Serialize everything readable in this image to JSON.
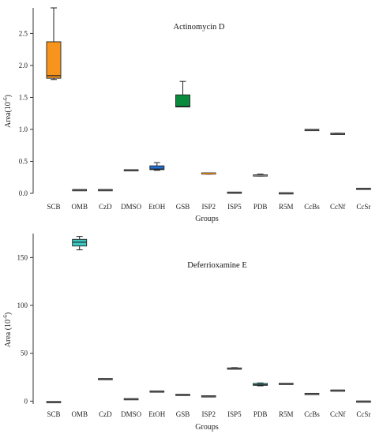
{
  "chart_data": [
    {
      "type": "box",
      "title": "Actinomycin D",
      "xlabel": "Groups",
      "ylabel": "Area(10^-6)",
      "ylabel_base": "Area(10",
      "ylabel_exp": "-6",
      "ylabel_close": ")",
      "ylim": [
        0,
        2.9
      ],
      "yticks": [
        "0.0",
        "0.5",
        "1.0",
        "1.5",
        "2.0",
        "2.5"
      ],
      "ytick_values": [
        0,
        0.5,
        1.0,
        1.5,
        2.0,
        2.5
      ],
      "categories": [
        "SCB",
        "OMB",
        "CzD",
        "DMSO",
        "EtOH",
        "GSB",
        "ISP2",
        "ISP5",
        "PDB",
        "R5M",
        "CcBs",
        "CcNf",
        "CcSr"
      ],
      "boxes": [
        {
          "min": 1.78,
          "q1": 1.8,
          "median": 1.84,
          "q3": 2.37,
          "max": 2.9,
          "color": "#f7941d"
        },
        {
          "min": 0.05,
          "q1": 0.05,
          "median": 0.05,
          "q3": 0.05,
          "max": 0.05,
          "color": "#555555"
        },
        {
          "min": 0.05,
          "q1": 0.05,
          "median": 0.05,
          "q3": 0.05,
          "max": 0.05,
          "color": "#555555"
        },
        {
          "min": 0.36,
          "q1": 0.36,
          "median": 0.36,
          "q3": 0.36,
          "max": 0.36,
          "color": "#555555"
        },
        {
          "min": 0.36,
          "q1": 0.37,
          "median": 0.38,
          "q3": 0.43,
          "max": 0.48,
          "color": "#1f6fd1"
        },
        {
          "min": 1.35,
          "q1": 1.35,
          "median": 1.36,
          "q3": 1.54,
          "max": 1.75,
          "color": "#0a8a3c"
        },
        {
          "min": 0.3,
          "q1": 0.31,
          "median": 0.31,
          "q3": 0.32,
          "max": 0.32,
          "color": "#f7941d"
        },
        {
          "min": 0.01,
          "q1": 0.01,
          "median": 0.01,
          "q3": 0.01,
          "max": 0.01,
          "color": "#555555"
        },
        {
          "min": 0.27,
          "q1": 0.28,
          "median": 0.28,
          "q3": 0.29,
          "max": 0.3,
          "color": "#7f7f7f"
        },
        {
          "min": 0.0,
          "q1": 0.0,
          "median": 0.0,
          "q3": 0.0,
          "max": 0.0,
          "color": "#555555"
        },
        {
          "min": 0.99,
          "q1": 0.99,
          "median": 0.99,
          "q3": 0.99,
          "max": 0.99,
          "color": "#555555"
        },
        {
          "min": 0.92,
          "q1": 0.92,
          "median": 0.93,
          "q3": 0.93,
          "max": 0.94,
          "color": "#555555"
        },
        {
          "min": 0.07,
          "q1": 0.07,
          "median": 0.07,
          "q3": 0.07,
          "max": 0.07,
          "color": "#555555"
        }
      ]
    },
    {
      "type": "box",
      "title": "Deferrioxamine E",
      "xlabel": "Groups",
      "ylabel": "Area (10^-6)",
      "ylabel_base": "Area (10",
      "ylabel_exp": "-6",
      "ylabel_close": ")",
      "ylim": [
        -3,
        175
      ],
      "yticks": [
        "0",
        "50",
        "100",
        "150"
      ],
      "ytick_values": [
        0,
        50,
        100,
        150
      ],
      "categories": [
        "SCB",
        "OMB",
        "CzD",
        "DMSO",
        "EtOH",
        "GSB",
        "ISP2",
        "ISP5",
        "PDB",
        "R5M",
        "CcBs",
        "CcNf",
        "CcSr"
      ],
      "boxes": [
        {
          "min": -1,
          "q1": -1,
          "median": -1,
          "q3": -1,
          "max": -1,
          "color": "#555555"
        },
        {
          "min": 158,
          "q1": 162,
          "median": 166,
          "q3": 169,
          "max": 172,
          "color": "#3cc8c0"
        },
        {
          "min": 23,
          "q1": 23,
          "median": 23,
          "q3": 23,
          "max": 23,
          "color": "#555555"
        },
        {
          "min": 2,
          "q1": 2,
          "median": 2,
          "q3": 2,
          "max": 2,
          "color": "#555555"
        },
        {
          "min": 10,
          "q1": 10,
          "median": 10,
          "q3": 10,
          "max": 10,
          "color": "#555555"
        },
        {
          "min": 6.5,
          "q1": 6.5,
          "median": 6.5,
          "q3": 6.5,
          "max": 6.5,
          "color": "#555555"
        },
        {
          "min": 5,
          "q1": 5,
          "median": 5,
          "q3": 5,
          "max": 5,
          "color": "#555555"
        },
        {
          "min": 33.5,
          "q1": 33.5,
          "median": 34,
          "q3": 34.5,
          "max": 35,
          "color": "#555555"
        },
        {
          "min": 16,
          "q1": 16.5,
          "median": 17,
          "q3": 18.5,
          "max": 19,
          "color": "#3cc8c0"
        },
        {
          "min": 18,
          "q1": 18,
          "median": 18,
          "q3": 18,
          "max": 18,
          "color": "#555555"
        },
        {
          "min": 7.5,
          "q1": 7.5,
          "median": 7.5,
          "q3": 7.5,
          "max": 7.5,
          "color": "#555555"
        },
        {
          "min": 11,
          "q1": 11,
          "median": 11,
          "q3": 11.5,
          "max": 11.5,
          "color": "#555555"
        },
        {
          "min": -0.5,
          "q1": -0.5,
          "median": -0.5,
          "q3": -0.5,
          "max": -0.5,
          "color": "#555555"
        }
      ]
    }
  ]
}
